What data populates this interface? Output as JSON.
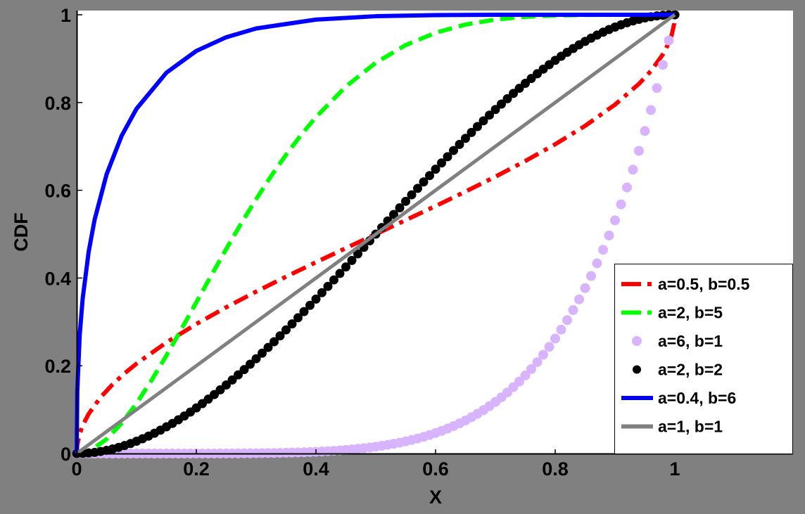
{
  "figure": {
    "background_color": "#808080",
    "plot_background_color": "#FFFFFF"
  },
  "chart_data": {
    "type": "line",
    "title": "",
    "xlabel": "X",
    "ylabel": "CDF",
    "xlim": [
      0,
      1.2
    ],
    "ylim": [
      0,
      1.01
    ],
    "grid": false,
    "legend_position": "lower right (inside)",
    "x_ticks": [
      0,
      0.2,
      0.4,
      0.6,
      0.8,
      1
    ],
    "x_tick_labels": [
      "0",
      "0.2",
      "0.4",
      "0.6",
      "0.8",
      "1"
    ],
    "y_ticks": [
      0,
      0.2,
      0.4,
      0.6,
      0.8,
      1
    ],
    "y_tick_labels": [
      "0",
      "0.2",
      "0.4",
      "0.6",
      "0.8",
      "1"
    ],
    "series": [
      {
        "name": "a=0.5, b=0.5",
        "color": "#FF0000",
        "style": "dash-dot",
        "marker": "none",
        "x": [
          0,
          0.001,
          0.005,
          0.01,
          0.02,
          0.04,
          0.06,
          0.08,
          0.1,
          0.15,
          0.2,
          0.25,
          0.3,
          0.35,
          0.4,
          0.45,
          0.5,
          0.55,
          0.6,
          0.65,
          0.7,
          0.75,
          0.8,
          0.85,
          0.9,
          0.94,
          0.96,
          0.98,
          0.99,
          0.995,
          0.999,
          1
        ],
        "y": [
          0,
          0.0201,
          0.0451,
          0.0638,
          0.0903,
          0.1282,
          0.1575,
          0.1827,
          0.2048,
          0.2532,
          0.2952,
          0.3333,
          0.369,
          0.403,
          0.4359,
          0.4681,
          0.5,
          0.5319,
          0.5641,
          0.597,
          0.631,
          0.6667,
          0.7048,
          0.7468,
          0.7952,
          0.8425,
          0.8718,
          0.9097,
          0.9362,
          0.955,
          0.9799,
          1
        ]
      },
      {
        "name": "a=2, b=5",
        "color": "#00FF00",
        "style": "dashed",
        "marker": "none",
        "x": [
          0,
          0.025,
          0.05,
          0.075,
          0.1,
          0.125,
          0.15,
          0.175,
          0.2,
          0.225,
          0.25,
          0.275,
          0.3,
          0.325,
          0.35,
          0.375,
          0.4,
          0.45,
          0.5,
          0.55,
          0.6,
          0.65,
          0.7,
          0.75,
          0.8,
          0.85,
          0.9,
          1
        ],
        "y": [
          0,
          0.0088,
          0.0328,
          0.0689,
          0.1143,
          0.1665,
          0.2235,
          0.2834,
          0.3446,
          0.4059,
          0.4661,
          0.5243,
          0.5798,
          0.6322,
          0.6809,
          0.7258,
          0.7667,
          0.8364,
          0.8906,
          0.9308,
          0.959,
          0.9777,
          0.9891,
          0.9954,
          0.9984,
          0.9996,
          0.9999,
          1
        ]
      },
      {
        "name": "a=6, b=1",
        "color": "#D8B4FE",
        "style": "none",
        "marker": "circle",
        "x_start": 0,
        "x_step": 0.01,
        "y": [
          0,
          0,
          0,
          0,
          0,
          0,
          0,
          0,
          0,
          0,
          0,
          0,
          0,
          0,
          0,
          0,
          0,
          0,
          0,
          0,
          0.0001,
          0.0001,
          0.0001,
          0.0001,
          0.0002,
          0.0002,
          0.0003,
          0.0004,
          0.0005,
          0.0006,
          0.0007,
          0.0009,
          0.0011,
          0.0013,
          0.0015,
          0.0018,
          0.0022,
          0.0026,
          0.003,
          0.0035,
          0.0041,
          0.0048,
          0.0055,
          0.0063,
          0.0073,
          0.0083,
          0.0095,
          0.0108,
          0.0122,
          0.0138,
          0.0156,
          0.0176,
          0.0198,
          0.0222,
          0.0248,
          0.0277,
          0.0308,
          0.0343,
          0.0381,
          0.0422,
          0.0467,
          0.0515,
          0.0568,
          0.0625,
          0.0687,
          0.0754,
          0.0827,
          0.0905,
          0.0989,
          0.1079,
          0.1176,
          0.1281,
          0.1393,
          0.1513,
          0.1642,
          0.178,
          0.1927,
          0.2084,
          0.2252,
          0.2431,
          0.2621,
          0.2824,
          0.304,
          0.3269,
          0.3513,
          0.3771,
          0.4046,
          0.4336,
          0.4644,
          0.497,
          0.5314,
          0.5679,
          0.6064,
          0.647,
          0.6899,
          0.7351,
          0.7828,
          0.833,
          0.8858,
          0.9415,
          1
        ]
      },
      {
        "name": "a=2, b=2",
        "color": "#000000",
        "style": "none",
        "marker": "circle",
        "x_start": 0,
        "x_step": 0.01,
        "y": [
          0,
          0.0003,
          0.0012,
          0.0026,
          0.0047,
          0.0073,
          0.0104,
          0.014,
          0.0182,
          0.0228,
          0.028,
          0.0336,
          0.0397,
          0.0463,
          0.0533,
          0.0608,
          0.0686,
          0.0769,
          0.0855,
          0.0946,
          0.104,
          0.1138,
          0.1239,
          0.1344,
          0.1452,
          0.1563,
          0.1676,
          0.1793,
          0.1913,
          0.2035,
          0.216,
          0.2287,
          0.2417,
          0.2548,
          0.2682,
          0.2818,
          0.2955,
          0.3094,
          0.3235,
          0.3377,
          0.352,
          0.3665,
          0.381,
          0.3957,
          0.4104,
          0.4253,
          0.4401,
          0.4551,
          0.47,
          0.485,
          0.5,
          0.515,
          0.53,
          0.5449,
          0.5599,
          0.5748,
          0.5896,
          0.6043,
          0.619,
          0.6335,
          0.648,
          0.6623,
          0.6765,
          0.6906,
          0.7045,
          0.7183,
          0.7318,
          0.7452,
          0.7583,
          0.7713,
          0.784,
          0.7965,
          0.8087,
          0.8207,
          0.8324,
          0.8438,
          0.8548,
          0.8656,
          0.8761,
          0.8862,
          0.896,
          0.9054,
          0.9145,
          0.9231,
          0.9314,
          0.9393,
          0.9467,
          0.9537,
          0.9603,
          0.9664,
          0.972,
          0.9772,
          0.9818,
          0.986,
          0.9896,
          0.9927,
          0.9953,
          0.9974,
          0.9988,
          0.9997,
          1
        ]
      },
      {
        "name": "a=0.4, b=6",
        "color": "#0000FF",
        "style": "solid",
        "marker": "none",
        "x": [
          0,
          0.001,
          0.005,
          0.01,
          0.02,
          0.03,
          0.05,
          0.075,
          0.1,
          0.15,
          0.2,
          0.25,
          0.3,
          0.4,
          0.5,
          0.6,
          0.7,
          0.8,
          0.9,
          1
        ],
        "y": [
          0,
          0.1425,
          0.2698,
          0.3534,
          0.4598,
          0.5333,
          0.6364,
          0.7238,
          0.7858,
          0.868,
          0.9176,
          0.9488,
          0.9688,
          0.989,
          0.9967,
          0.9992,
          0.9999,
          1,
          1,
          1
        ]
      },
      {
        "name": "a=1, b=1",
        "color": "#808080",
        "style": "solid",
        "marker": "none",
        "x": [
          0,
          1
        ],
        "y": [
          0,
          1
        ]
      }
    ]
  }
}
